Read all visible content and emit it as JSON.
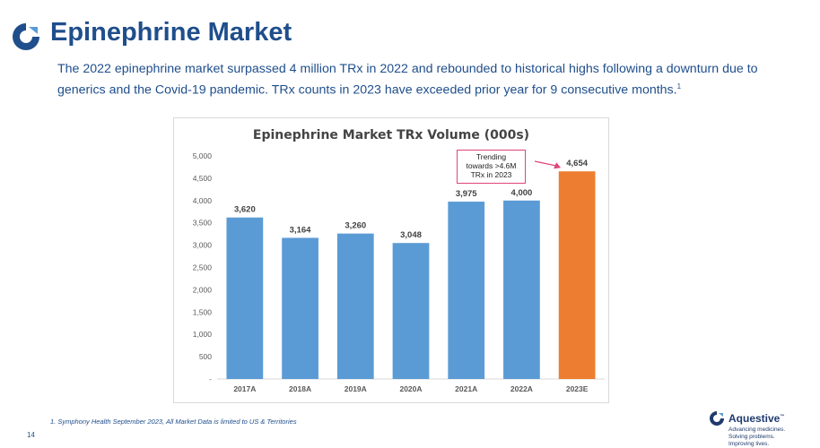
{
  "header": {
    "title": "Epinephrine Market",
    "subtitle": "The 2022 epinephrine market surpassed 4 million TRx in 2022 and rebounded to historical highs following a downturn due to generics and the Covid-19 pandemic.  TRx counts in 2023 have exceeded prior year for 9 consecutive months.",
    "subtitle_sup": "1"
  },
  "colors": {
    "brand_blue": "#1f4e8c",
    "bar_actual": "#5b9bd5",
    "bar_estimate": "#ed7d31",
    "callout_border": "#e0447a"
  },
  "chart_data": {
    "type": "bar",
    "title": "Epinephrine Market TRx Volume (000s)",
    "categories": [
      "2017A",
      "2018A",
      "2019A",
      "2020A",
      "2021A",
      "2022A",
      "2023E"
    ],
    "values": [
      3620,
      3164,
      3260,
      3048,
      3975,
      4000,
      4654
    ],
    "value_labels": [
      "3,620",
      "3,164",
      "3,260",
      "3,048",
      "3,975",
      "4,000",
      "4,654"
    ],
    "ylim": [
      0,
      5000
    ],
    "y_ticks": [
      0,
      500,
      1000,
      1500,
      2000,
      2500,
      3000,
      3500,
      4000,
      4500,
      5000
    ],
    "y_tick_labels": [
      "-",
      "500",
      "1,000",
      "1,500",
      "2,000",
      "2,500",
      "3,000",
      "3,500",
      "4,000",
      "4,500",
      "5,000"
    ],
    "grid": false,
    "highlighted_category": "2023E",
    "annotation": {
      "lines": [
        "Trending",
        "towards >4.6M",
        "TRx in 2023"
      ],
      "target_category": "2023E"
    }
  },
  "footer": {
    "footnote": "1.  Symphony Health September 2023, All Market Data is limited to US & Territories",
    "page_number": "14",
    "brand_name": "Aquestive",
    "brand_tm": "™",
    "brand_tagline": [
      "Advancing medicines.",
      "Solving problems.",
      "Improving lives."
    ]
  }
}
